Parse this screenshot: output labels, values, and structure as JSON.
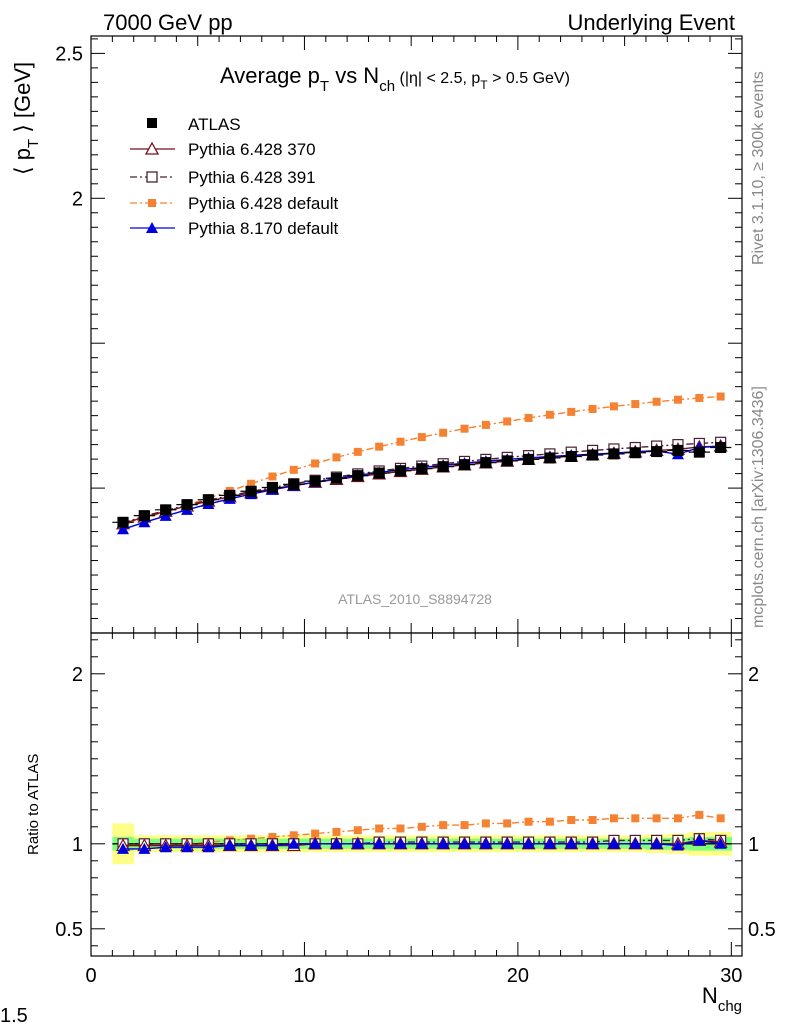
{
  "header": {
    "energy": "7000 GeV pp",
    "category": "Underlying Event"
  },
  "side": {
    "rivet": "Rivet 3.1.10, ≥ 300k events",
    "mcplots": "mcplots.cern.ch [arXiv:1306.3436]"
  },
  "analysis_id": "ATLAS_2010_S8894728",
  "corner_label": "1.5",
  "colors": {
    "atlas": "#000000",
    "p370": "#7a0f1e",
    "p391": "#4a2030",
    "p6def": "#f58232",
    "p8def": "#0000dd",
    "band_inner": "#7fff7f",
    "band_outer": "#ffff88"
  },
  "chart_data": [
    {
      "type": "line",
      "title_parts": {
        "a": "Average p",
        "a_sub": "T",
        "b": " vs N",
        "b_sub": "ch",
        "c": " (|η| < 2.5, p",
        "c_sub": "T",
        "d": " > 0.5 GeV)"
      },
      "ylabel_parts": {
        "a": "⟨ p",
        "sub": "T",
        "b": " ⟩ [GeV]"
      },
      "xlim": [
        0,
        30.5
      ],
      "ylim": [
        0.5,
        2.56
      ],
      "y_tick_labels": [
        {
          "value": 2.5,
          "label": "2.5"
        },
        {
          "value": 2,
          "label": "2"
        }
      ],
      "legend_position": "top-left",
      "x": [
        1.5,
        2.5,
        3.5,
        4.5,
        5.5,
        6.5,
        7.5,
        8.5,
        9.5,
        10.5,
        11.5,
        12.5,
        13.5,
        14.5,
        15.5,
        16.5,
        17.5,
        18.5,
        19.5,
        20.5,
        21.5,
        22.5,
        23.5,
        24.5,
        25.5,
        26.5,
        27.5,
        28.5,
        29.5
      ],
      "series": [
        {
          "key": "atlas",
          "name": "ATLAS",
          "marker": "filled-square",
          "values": [
            0.882,
            0.905,
            0.925,
            0.943,
            0.96,
            0.975,
            0.989,
            1.002,
            1.013,
            1.024,
            1.034,
            1.043,
            1.052,
            1.06,
            1.067,
            1.074,
            1.081,
            1.088,
            1.094,
            1.099,
            1.104,
            1.109,
            1.114,
            1.118,
            1.122,
            1.126,
            1.13,
            1.124,
            1.14
          ]
        },
        {
          "key": "p370",
          "name": "Pythia 6.428 370",
          "marker": "open-triangle",
          "values": [
            0.877,
            0.9,
            0.92,
            0.938,
            0.955,
            0.97,
            0.984,
            0.997,
            1.009,
            1.02,
            1.03,
            1.04,
            1.049,
            1.057,
            1.065,
            1.073,
            1.08,
            1.087,
            1.093,
            1.099,
            1.105,
            1.11,
            1.115,
            1.12,
            1.125,
            1.13,
            1.134,
            1.142,
            1.145
          ]
        },
        {
          "key": "p391",
          "name": "Pythia 6.428 391",
          "marker": "open-square",
          "values": [
            0.88,
            0.903,
            0.923,
            0.941,
            0.958,
            0.974,
            0.988,
            1.002,
            1.015,
            1.027,
            1.038,
            1.049,
            1.059,
            1.068,
            1.076,
            1.084,
            1.092,
            1.099,
            1.106,
            1.112,
            1.118,
            1.124,
            1.13,
            1.135,
            1.14,
            1.145,
            1.15,
            1.154,
            1.158
          ]
        },
        {
          "key": "p6def",
          "name": "Pythia 6.428 default",
          "marker": "filled-square-small",
          "values": [
            0.872,
            0.896,
            0.919,
            0.942,
            0.965,
            0.99,
            1.015,
            1.04,
            1.063,
            1.085,
            1.106,
            1.125,
            1.143,
            1.16,
            1.176,
            1.191,
            1.205,
            1.218,
            1.23,
            1.242,
            1.253,
            1.263,
            1.273,
            1.282,
            1.29,
            1.298,
            1.305,
            1.311,
            1.316
          ]
        },
        {
          "key": "p8def",
          "name": "Pythia 8.170 default",
          "marker": "filled-triangle",
          "values": [
            0.858,
            0.882,
            0.904,
            0.925,
            0.945,
            0.963,
            0.979,
            0.994,
            1.008,
            1.021,
            1.033,
            1.044,
            1.054,
            1.063,
            1.071,
            1.079,
            1.086,
            1.093,
            1.099,
            1.104,
            1.109,
            1.113,
            1.117,
            1.121,
            1.125,
            1.128,
            1.117,
            1.14,
            1.145
          ]
        }
      ]
    },
    {
      "type": "line",
      "ylabel": "Ratio to ATLAS",
      "xlabel_parts": {
        "a": "N",
        "sub": "chg"
      },
      "xlim": [
        0,
        30.5
      ],
      "ylim": [
        0.34,
        2.24
      ],
      "x_tick_labels": [
        {
          "value": 0,
          "label": "0"
        },
        {
          "value": 10,
          "label": "10"
        },
        {
          "value": 20,
          "label": "20"
        },
        {
          "value": 30,
          "label": "30"
        }
      ],
      "y_tick_labels": [
        {
          "value": 2,
          "label": "2"
        },
        {
          "value": 1,
          "label": "1"
        },
        {
          "value": 0.5,
          "label": "0.5"
        }
      ],
      "x": [
        1.5,
        2.5,
        3.5,
        4.5,
        5.5,
        6.5,
        7.5,
        8.5,
        9.5,
        10.5,
        11.5,
        12.5,
        13.5,
        14.5,
        15.5,
        16.5,
        17.5,
        18.5,
        19.5,
        20.5,
        21.5,
        22.5,
        23.5,
        24.5,
        25.5,
        26.5,
        27.5,
        28.5,
        29.5
      ],
      "band_inner_halfwidth": [
        0.04,
        0.03,
        0.03,
        0.03,
        0.03,
        0.03,
        0.03,
        0.03,
        0.03,
        0.03,
        0.03,
        0.03,
        0.03,
        0.03,
        0.03,
        0.03,
        0.03,
        0.03,
        0.03,
        0.03,
        0.03,
        0.03,
        0.03,
        0.03,
        0.03,
        0.035,
        0.035,
        0.04,
        0.04
      ],
      "band_outer_halfwidth": [
        0.12,
        0.05,
        0.05,
        0.05,
        0.05,
        0.05,
        0.05,
        0.05,
        0.05,
        0.05,
        0.05,
        0.05,
        0.05,
        0.05,
        0.05,
        0.05,
        0.05,
        0.05,
        0.05,
        0.05,
        0.05,
        0.05,
        0.05,
        0.05,
        0.05,
        0.055,
        0.06,
        0.07,
        0.07
      ],
      "series": [
        {
          "key": "p370",
          "marker": "open-triangle",
          "values": [
            0.99,
            0.99,
            0.99,
            0.99,
            0.99,
            0.99,
            0.99,
            0.99,
            0.99,
            1.0,
            1.0,
            1.0,
            1.0,
            1.0,
            1.0,
            1.0,
            1.0,
            1.0,
            1.0,
            1.0,
            1.0,
            1.0,
            1.0,
            1.0,
            1.0,
            1.0,
            1.0,
            1.02,
            1.01
          ]
        },
        {
          "key": "p391",
          "marker": "open-square",
          "values": [
            1.0,
            1.0,
            1.0,
            1.0,
            1.0,
            1.0,
            1.0,
            1.0,
            1.0,
            1.0,
            1.0,
            1.0,
            1.01,
            1.01,
            1.01,
            1.01,
            1.01,
            1.01,
            1.01,
            1.01,
            1.01,
            1.01,
            1.01,
            1.02,
            1.02,
            1.02,
            1.02,
            1.03,
            1.02
          ]
        },
        {
          "key": "p6def",
          "marker": "filled-square-small",
          "values": [
            0.99,
            0.99,
            0.99,
            1.0,
            1.01,
            1.02,
            1.03,
            1.04,
            1.05,
            1.06,
            1.07,
            1.08,
            1.09,
            1.09,
            1.1,
            1.11,
            1.11,
            1.12,
            1.12,
            1.13,
            1.13,
            1.14,
            1.14,
            1.15,
            1.15,
            1.15,
            1.15,
            1.17,
            1.15
          ]
        },
        {
          "key": "p8def",
          "marker": "filled-triangle",
          "values": [
            0.97,
            0.97,
            0.98,
            0.98,
            0.98,
            0.99,
            0.99,
            0.99,
            1.0,
            1.0,
            1.0,
            1.0,
            1.0,
            1.0,
            1.0,
            1.0,
            1.0,
            1.0,
            1.0,
            1.0,
            1.0,
            1.0,
            1.0,
            1.0,
            1.0,
            1.0,
            0.99,
            1.02,
            1.0
          ]
        }
      ]
    }
  ]
}
